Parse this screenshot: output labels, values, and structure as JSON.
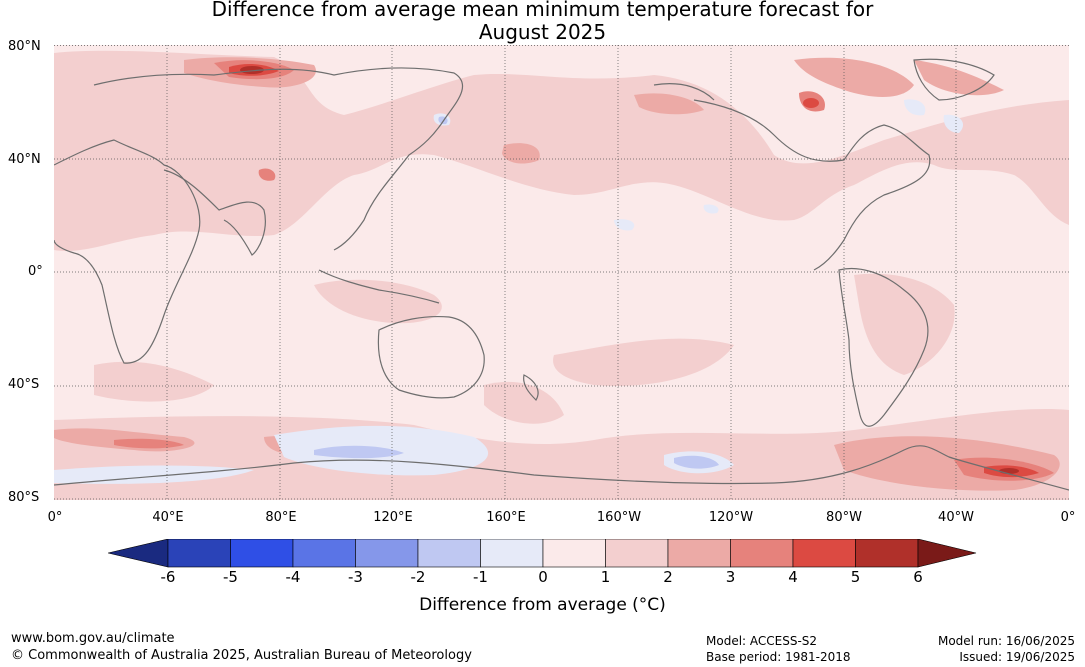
{
  "title": {
    "line1": "Difference from average mean minimum temperature forecast for",
    "line2": "August 2025"
  },
  "map": {
    "projection": "equirectangular",
    "longitude_range": [
      0,
      360
    ],
    "latitude_range": [
      -80,
      80
    ],
    "lat_labels": [
      "80°N",
      "40°N",
      "0°",
      "40°S",
      "80°S"
    ],
    "lon_labels": [
      "0°",
      "40°E",
      "80°E",
      "120°E",
      "160°E",
      "160°W",
      "120°W",
      "80°W",
      "40°W",
      "0°"
    ],
    "background_anomaly_class": "0 to 1",
    "notable_features": [
      {
        "region": "Western Siberia / Urals",
        "anomaly": "4 to 6"
      },
      {
        "region": "Greenland east",
        "anomaly": "4 to 6"
      },
      {
        "region": "Hudson Bay",
        "anomaly": "3 to 5"
      },
      {
        "region": "Alaska north coast",
        "anomaly": "3 to 4"
      },
      {
        "region": "Southern Ocean 0-90°E",
        "anomaly": "2 to 4"
      },
      {
        "region": "Weddell Sea",
        "anomaly": "3 to 6"
      },
      {
        "region": "East Antarctic coast",
        "anomaly": "-2 to -1"
      }
    ]
  },
  "colorbar": {
    "title": "Difference from average (°C)",
    "ticks": [
      "-6",
      "-5",
      "-4",
      "-3",
      "-2",
      "-1",
      "0",
      "1",
      "2",
      "3",
      "4",
      "5",
      "6"
    ],
    "colors": [
      "#1a2a80",
      "#2a43b8",
      "#2f4fe6",
      "#5a74e6",
      "#8597ea",
      "#bfc8f2",
      "#e6eaf8",
      "#fbeaea",
      "#f3cfcf",
      "#ecaaa6",
      "#e6827c",
      "#dc4a42",
      "#b0302a",
      "#7a1a18"
    ]
  },
  "footer": {
    "website": "www.bom.gov.au/climate",
    "copyright": "© Commonwealth of Australia 2025, Australian Bureau of Meteorology",
    "model": "Model: ACCESS-S2",
    "base_period": "Base period: 1981-2018",
    "model_run": "Model run: 16/06/2025",
    "issued": "Issued: 19/06/2025"
  }
}
